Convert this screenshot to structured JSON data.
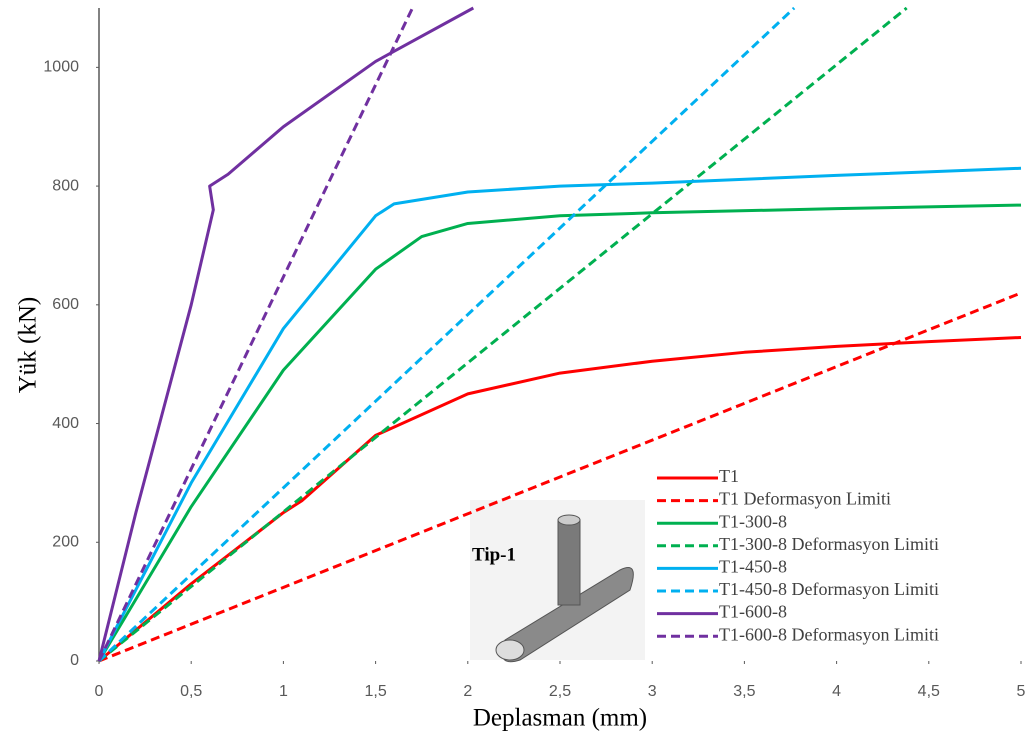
{
  "chart_data": {
    "type": "line",
    "xlabel": "Deplasman (mm)",
    "ylabel": "Yük (kN)",
    "annotation": "Tip-1",
    "xlim": [
      0,
      5
    ],
    "ylim": [
      0,
      1100
    ],
    "xticks": [
      0,
      {
        "value": 0.5,
        "label": "0,5"
      },
      1,
      {
        "value": 1.5,
        "label": "1,5"
      },
      2,
      {
        "value": 2.5,
        "label": "2,5"
      },
      3,
      {
        "value": 3.5,
        "label": "3,5"
      },
      4,
      {
        "value": 4.5,
        "label": "4,5"
      },
      5
    ],
    "yticks": [
      0,
      200,
      400,
      600,
      800,
      1000
    ],
    "grid": false,
    "legend": "lower right",
    "series": [
      {
        "name": "T1",
        "color": "#ff0000",
        "dashed": false,
        "x": [
          0,
          0.5,
          1,
          1.1,
          1.5,
          2,
          2.5,
          3,
          3.5,
          4,
          4.5,
          5
        ],
        "values": [
          0,
          130,
          250,
          270,
          380,
          450,
          485,
          505,
          520,
          530,
          538,
          545
        ]
      },
      {
        "name": "T1 Deformasyon Limiti",
        "color": "#ff0000",
        "dashed": true,
        "x": [
          0,
          5
        ],
        "values": [
          0,
          620
        ]
      },
      {
        "name": "T1-300-8",
        "color": "#00b050",
        "dashed": false,
        "x": [
          0,
          0.5,
          1,
          1.5,
          1.75,
          2,
          2.5,
          3,
          4,
          5
        ],
        "values": [
          0,
          260,
          490,
          660,
          715,
          737,
          750,
          755,
          762,
          768
        ]
      },
      {
        "name": "T1-300-8 Deformasyon Limiti",
        "color": "#00b050",
        "dashed": true,
        "x": [
          0,
          4.38
        ],
        "values": [
          0,
          1100
        ]
      },
      {
        "name": "T1-450-8",
        "color": "#00b0f0",
        "dashed": false,
        "x": [
          0,
          0.5,
          1,
          1.5,
          1.6,
          2,
          2.5,
          3,
          4,
          5
        ],
        "values": [
          0,
          300,
          560,
          750,
          770,
          790,
          800,
          805,
          818,
          830
        ]
      },
      {
        "name": "T1-450-8 Deformasyon Limiti",
        "color": "#00b0f0",
        "dashed": true,
        "x": [
          0,
          3.77
        ],
        "values": [
          0,
          1100
        ]
      },
      {
        "name": "T1-600-8",
        "color": "#7030a0",
        "dashed": false,
        "x": [
          0,
          0.2,
          0.5,
          0.62,
          0.6,
          0.7,
          1,
          1.5,
          2.03
        ],
        "values": [
          0,
          250,
          600,
          760,
          800,
          820,
          900,
          1010,
          1100
        ]
      },
      {
        "name": "T1-600-8 Deformasyon Limiti",
        "color": "#7030a0",
        "dashed": true,
        "x": [
          0,
          1.7
        ],
        "values": [
          0,
          1100
        ]
      }
    ]
  }
}
